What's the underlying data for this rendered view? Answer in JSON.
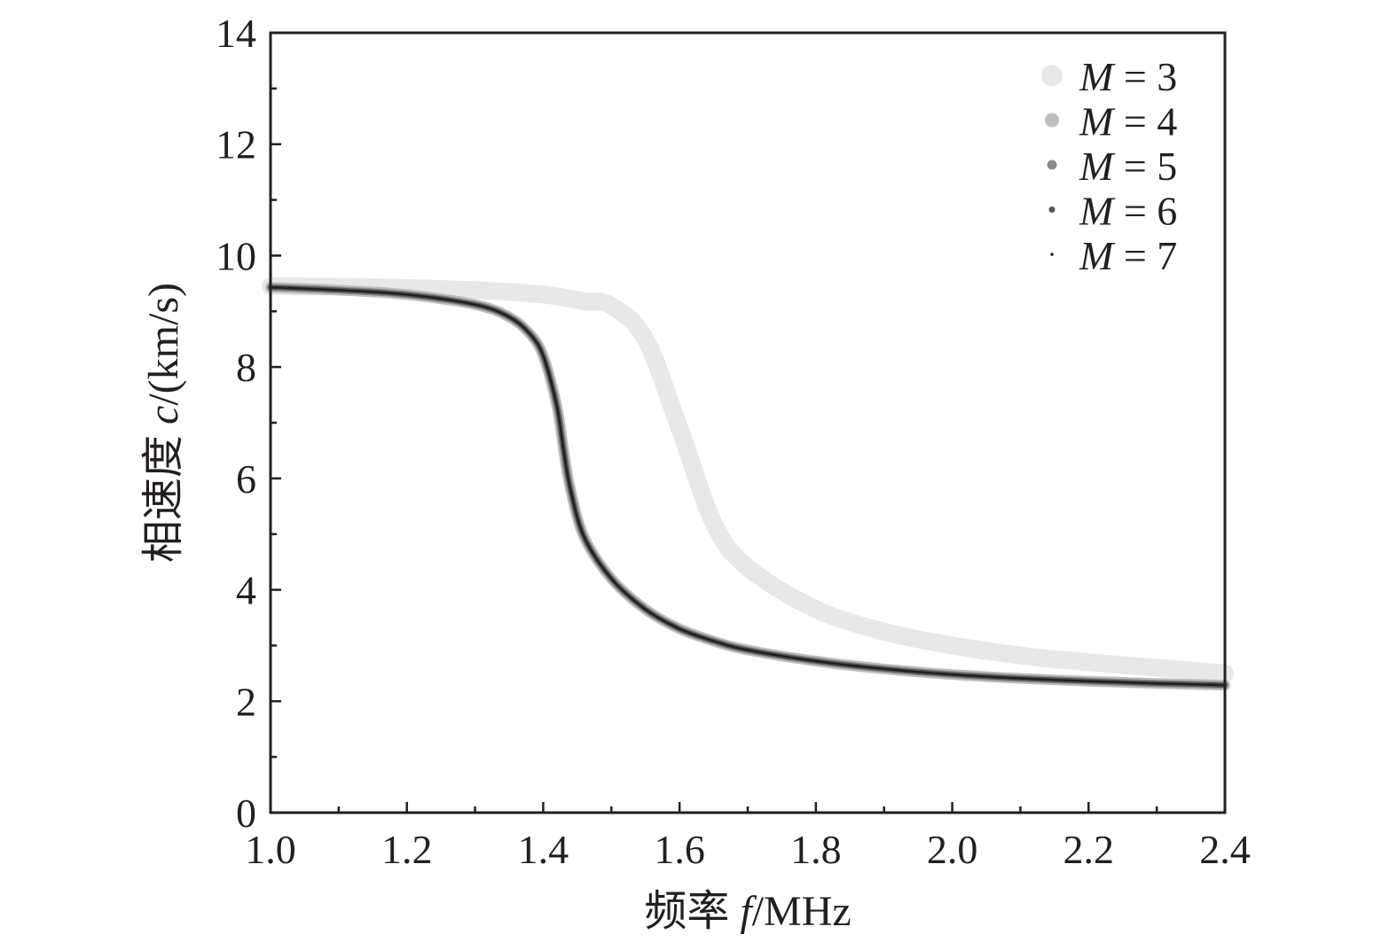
{
  "chart_data": {
    "type": "line",
    "xlabel": "频率 f/MHz",
    "xlabel_parts": {
      "prefix": "频率 ",
      "var": "f",
      "suffix": "/MHz"
    },
    "ylabel": "相速度 c/(km/s)",
    "ylabel_parts": {
      "prefix": "相速度 ",
      "var": "c",
      "suffix": "/(km/s)"
    },
    "xlim": [
      1.0,
      2.4
    ],
    "ylim": [
      0,
      14
    ],
    "x_ticks": [
      "1.0",
      "1.2",
      "1.4",
      "1.6",
      "1.8",
      "2.0",
      "2.2",
      "2.4"
    ],
    "y_ticks": [
      "0",
      "2",
      "4",
      "6",
      "8",
      "10",
      "12",
      "14"
    ],
    "grid": false,
    "legend_position": "top-right",
    "x": [
      1.0,
      1.1,
      1.2,
      1.3,
      1.35,
      1.38,
      1.4,
      1.42,
      1.43,
      1.44,
      1.46,
      1.5,
      1.55,
      1.6,
      1.65,
      1.7,
      1.8,
      1.9,
      2.0,
      2.1,
      2.2,
      2.3,
      2.4
    ],
    "series": [
      {
        "name": "M = 3",
        "color": "#e8e8e8",
        "values": [
          9.45,
          9.44,
          9.42,
          9.38,
          9.35,
          9.32,
          9.3,
          9.27,
          9.25,
          9.23,
          9.18,
          9.1,
          8.5,
          6.9,
          5.2,
          4.4,
          3.65,
          3.25,
          3.0,
          2.82,
          2.7,
          2.6,
          2.5
        ]
      },
      {
        "name": "M = 4",
        "color": "#bdbdbd",
        "values": [
          9.43,
          9.38,
          9.3,
          9.12,
          8.9,
          8.6,
          8.2,
          7.3,
          6.5,
          5.8,
          4.95,
          4.2,
          3.65,
          3.3,
          3.08,
          2.92,
          2.72,
          2.58,
          2.48,
          2.41,
          2.36,
          2.32,
          2.29
        ]
      },
      {
        "name": "M = 5",
        "color": "#8c8c8c",
        "values": [
          9.43,
          9.38,
          9.3,
          9.12,
          8.9,
          8.6,
          8.2,
          7.3,
          6.5,
          5.8,
          4.95,
          4.2,
          3.65,
          3.3,
          3.08,
          2.92,
          2.72,
          2.58,
          2.48,
          2.41,
          2.36,
          2.32,
          2.29
        ]
      },
      {
        "name": "M = 6",
        "color": "#555555",
        "values": [
          9.43,
          9.38,
          9.3,
          9.12,
          8.9,
          8.6,
          8.2,
          7.3,
          6.5,
          5.8,
          4.95,
          4.2,
          3.65,
          3.3,
          3.08,
          2.92,
          2.72,
          2.58,
          2.48,
          2.41,
          2.36,
          2.32,
          2.29
        ]
      },
      {
        "name": "M = 7",
        "color": "#1f1f1f",
        "values": [
          9.43,
          9.38,
          9.3,
          9.12,
          8.9,
          8.6,
          8.2,
          7.3,
          6.5,
          5.8,
          4.95,
          4.2,
          3.65,
          3.3,
          3.08,
          2.92,
          2.72,
          2.58,
          2.48,
          2.41,
          2.36,
          2.32,
          2.29
        ]
      }
    ]
  }
}
